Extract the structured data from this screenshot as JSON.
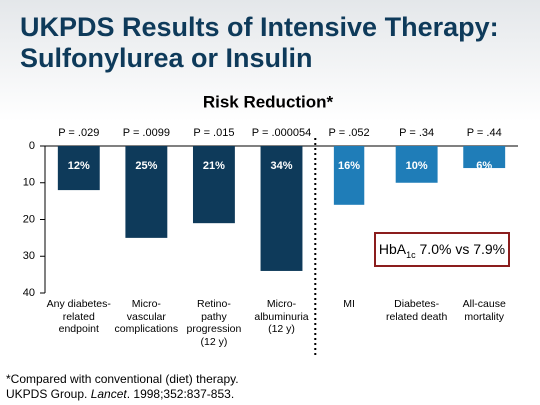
{
  "header": {
    "title_lines": [
      "UKPDS Results of Intensive Therapy:",
      "Sulfonylurea or Insulin"
    ]
  },
  "chart_data": {
    "type": "bar",
    "title": "Risk Reduction*",
    "categories": [
      "Any diabetes-\nrelated\nendpoint",
      "Micro-\nvascular\ncomplications",
      "Retino-\npathy\nprogression\n(12 y)",
      "Micro-\nalbuminuria\n(12 y)",
      "MI",
      "Diabetes-\nrelated death",
      "All-cause\nmortality"
    ],
    "values": [
      12,
      25,
      21,
      34,
      16,
      10,
      6
    ],
    "value_labels": [
      "12%",
      "25%",
      "21%",
      "34%",
      "16%",
      "10%",
      "6%"
    ],
    "p_values": [
      "P = .029",
      "P = .0099",
      "P = .015",
      "P = .000054",
      "P = .052",
      "P = .34",
      "P = .44"
    ],
    "colors": [
      "#0e3a5a",
      "#0e3a5a",
      "#0e3a5a",
      "#0e3a5a",
      "#1f7db8",
      "#1f7db8",
      "#1f7db8"
    ],
    "ylim": [
      0,
      40
    ],
    "yticks": [
      0,
      10,
      20,
      30,
      40
    ],
    "y_inverted": true,
    "annotation": {
      "main": "HbA",
      "sub": "1c",
      "rest": " 7.0% vs 7.9%"
    }
  },
  "footnotes": {
    "line1": "*Compared with conventional (diet) therapy.",
    "line2": [
      "UKPDS Group. ",
      "Lancet",
      ". 1998;352:837-853."
    ]
  }
}
